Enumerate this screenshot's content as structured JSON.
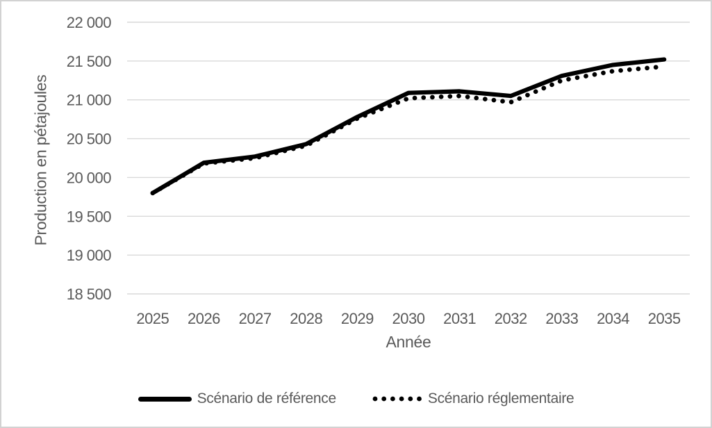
{
  "chart_data": {
    "type": "line",
    "title": "",
    "categories": [
      "2025",
      "2026",
      "2027",
      "2028",
      "2029",
      "2030",
      "2031",
      "2032",
      "2033",
      "2034",
      "2035"
    ],
    "series": [
      {
        "name": "Scénario de référence",
        "style": "solid",
        "values": [
          19800,
          20190,
          20270,
          20430,
          20780,
          21090,
          21110,
          21050,
          21310,
          21450,
          21520
        ]
      },
      {
        "name": "Scénario réglementaire",
        "style": "dotted",
        "values": [
          19800,
          20180,
          20250,
          20410,
          20760,
          21020,
          21050,
          20970,
          21250,
          21370,
          21430
        ]
      }
    ],
    "xlabel": "Année",
    "ylabel": "Production en pétajoules",
    "ylim": [
      18500,
      22000
    ],
    "y_step": 500,
    "y_tick_labels": [
      "18 500",
      "19 000",
      "19 500",
      "20 000",
      "20 500",
      "21 000",
      "21 500",
      "22 000"
    ],
    "grid": "horizontal",
    "legend_position": "bottom"
  },
  "colors": {
    "series_line": "#000000",
    "gridline": "#d9d9d9",
    "tick_text": "#595959",
    "frame_border": "#d2d2d2",
    "background": "#ffffff"
  }
}
